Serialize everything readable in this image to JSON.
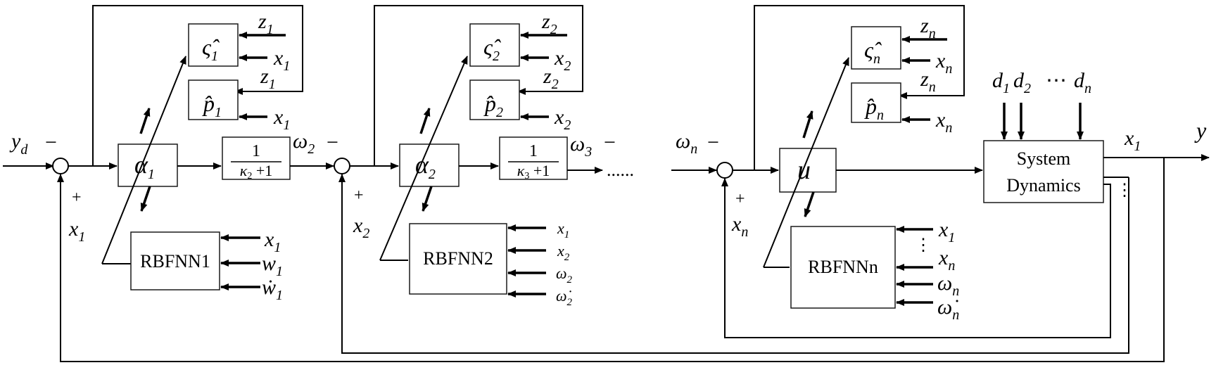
{
  "colors": {
    "line": "#000000",
    "block_border": "#1a1a1a",
    "background": "#ffffff"
  },
  "signals": {
    "reference": "y",
    "reference_sub": "d",
    "output": "y",
    "output_state": "x",
    "output_state_sub": "1",
    "ellipsis_dots": "......",
    "plus": "+",
    "minus": "−"
  },
  "stages": [
    {
      "virtual_control": "α",
      "virtual_control_sub": "1",
      "feedback_state": "x",
      "feedback_state_sub": "1",
      "rbfnn_label": "RBFNN1",
      "rbfnn_inputs": [
        {
          "sym": "x",
          "sub": "1"
        },
        {
          "sym": "w",
          "sub": "1"
        },
        {
          "sym": "ẇ",
          "sub": "1"
        }
      ],
      "filter_num": "1",
      "filter_den_sym": "κ",
      "filter_den_sub": "2",
      "filter_den_tail": " +1",
      "filter_out": "ω",
      "filter_out_sub": "2",
      "zeta_hat": "ς̂",
      "zeta_sub": "1",
      "p_hat": "p̂",
      "p_sub": "1",
      "zeta_inputs": [
        {
          "sym": "z",
          "sub": "1"
        },
        {
          "sym": "x",
          "sub": "1"
        }
      ],
      "p_inputs": [
        {
          "sym": "z",
          "sub": "1"
        },
        {
          "sym": "x",
          "sub": "1"
        }
      ]
    },
    {
      "virtual_control": "α",
      "virtual_control_sub": "2",
      "feedback_state": "x",
      "feedback_state_sub": "2",
      "rbfnn_label": "RBFNN2",
      "rbfnn_inputs": [
        {
          "sym": "x",
          "sub": "1"
        },
        {
          "sym": "x",
          "sub": "2"
        },
        {
          "sym": "ω",
          "sub": "2"
        },
        {
          "sym": "ω̇",
          "sub": "2"
        }
      ],
      "filter_num": "1",
      "filter_den_sym": "κ",
      "filter_den_sub": "3",
      "filter_den_tail": " +1",
      "filter_out": "ω",
      "filter_out_sub": "3",
      "zeta_hat": "ς̂",
      "zeta_sub": "2",
      "p_hat": "p̂",
      "p_sub": "2",
      "zeta_inputs": [
        {
          "sym": "z",
          "sub": "2"
        },
        {
          "sym": "x",
          "sub": "2"
        }
      ],
      "p_inputs": [
        {
          "sym": "z",
          "sub": "2"
        },
        {
          "sym": "x",
          "sub": "2"
        }
      ]
    },
    {
      "virtual_control": "u",
      "input_signal": "ω",
      "input_signal_sub": "n",
      "feedback_state": "x",
      "feedback_state_sub": "n",
      "rbfnn_label": "RBFNNn",
      "rbfnn_inputs": [
        {
          "sym": "x",
          "sub": "1"
        },
        {
          "sym": "⋮",
          "sub": ""
        },
        {
          "sym": "x",
          "sub": "n"
        },
        {
          "sym": "ω",
          "sub": "n"
        },
        {
          "sym": "ω̇",
          "sub": "n"
        }
      ],
      "zeta_hat": "ς̂",
      "zeta_sub": "n",
      "p_hat": "p̂",
      "p_sub": "n",
      "zeta_inputs": [
        {
          "sym": "z",
          "sub": "n"
        },
        {
          "sym": "x",
          "sub": "n"
        }
      ],
      "p_inputs": [
        {
          "sym": "z",
          "sub": "n"
        },
        {
          "sym": "x",
          "sub": "n"
        }
      ]
    }
  ],
  "system": {
    "label_line1": "System",
    "label_line2": "Dynamics",
    "disturbances": [
      {
        "sym": "d",
        "sub": "1"
      },
      {
        "sym": "d",
        "sub": "2"
      },
      {
        "sym": "⋯",
        "sub": ""
      },
      {
        "sym": "d",
        "sub": "n"
      }
    ],
    "side_dots": "⋮"
  }
}
